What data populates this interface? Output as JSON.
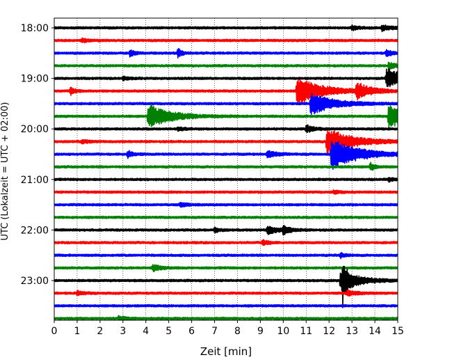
{
  "chart_data": {
    "type": "line",
    "subtype": "helicorder",
    "xlabel": "Zeit  [min]",
    "ylabel": "UTC (Lokalzeit = UTC + 02:00)",
    "xlim": [
      0,
      15
    ],
    "x_ticks": [
      "0",
      "1",
      "2",
      "3",
      "4",
      "5",
      "6",
      "7",
      "8",
      "9",
      "10",
      "11",
      "12",
      "13",
      "14",
      "15"
    ],
    "y_ticks": [
      "18:00",
      "19:00",
      "20:00",
      "21:00",
      "22:00",
      "23:00"
    ],
    "grid": "vertical dotted",
    "trace_colors": [
      "#000000",
      "#ff0000",
      "#0000ff",
      "#008000"
    ],
    "rows": [
      {
        "start": "18:00",
        "color": "#000000",
        "events": [
          {
            "t": 13.0,
            "amp": 0.35,
            "dur": 0.3
          },
          {
            "t": 14.3,
            "amp": 0.45,
            "dur": 0.4
          }
        ]
      },
      {
        "start": "18:15",
        "color": "#ff0000",
        "events": [
          {
            "t": 1.2,
            "amp": 0.3,
            "dur": 0.3
          }
        ]
      },
      {
        "start": "18:30",
        "color": "#0000ff",
        "events": [
          {
            "t": 3.3,
            "amp": 0.5,
            "dur": 0.2
          },
          {
            "t": 5.4,
            "amp": 0.8,
            "dur": 0.15
          },
          {
            "t": 14.5,
            "amp": 0.6,
            "dur": 0.2
          }
        ]
      },
      {
        "start": "18:45",
        "color": "#008000",
        "events": [
          {
            "t": 14.6,
            "amp": 0.5,
            "dur": 0.3
          }
        ]
      },
      {
        "start": "19:00",
        "color": "#000000",
        "events": [
          {
            "t": 14.5,
            "amp": 1.6,
            "dur": 0.8
          },
          {
            "t": 3.0,
            "amp": 0.25,
            "dur": 0.3
          }
        ]
      },
      {
        "start": "19:15",
        "color": "#ff0000",
        "events": [
          {
            "t": 0.7,
            "amp": 0.6,
            "dur": 0.2
          },
          {
            "t": 10.6,
            "amp": 2.2,
            "dur": 1.0
          },
          {
            "t": 13.2,
            "amp": 1.2,
            "dur": 0.6
          }
        ]
      },
      {
        "start": "19:30",
        "color": "#0000ff",
        "events": [
          {
            "t": 11.2,
            "amp": 1.8,
            "dur": 0.9
          }
        ]
      },
      {
        "start": "19:45",
        "color": "#008000",
        "events": [
          {
            "t": 4.1,
            "amp": 1.9,
            "dur": 0.9
          },
          {
            "t": 14.6,
            "amp": 2.0,
            "dur": 0.7
          }
        ]
      },
      {
        "start": "20:00",
        "color": "#000000",
        "events": [
          {
            "t": 11.0,
            "amp": 0.6,
            "dur": 0.3
          },
          {
            "t": 5.4,
            "amp": 0.3,
            "dur": 0.2
          }
        ]
      },
      {
        "start": "20:15",
        "color": "#ff0000",
        "events": [
          {
            "t": 11.9,
            "amp": 2.2,
            "dur": 1.0
          },
          {
            "t": 1.2,
            "amp": 0.25,
            "dur": 0.3
          }
        ]
      },
      {
        "start": "20:30",
        "color": "#0000ff",
        "events": [
          {
            "t": 12.1,
            "amp": 2.4,
            "dur": 1.1
          },
          {
            "t": 3.2,
            "amp": 0.6,
            "dur": 0.2
          },
          {
            "t": 9.3,
            "amp": 0.5,
            "dur": 0.4
          }
        ]
      },
      {
        "start": "20:45",
        "color": "#008000",
        "events": [
          {
            "t": 13.8,
            "amp": 0.6,
            "dur": 0.2
          }
        ]
      },
      {
        "start": "21:00",
        "color": "#000000",
        "events": [
          {
            "t": 14.6,
            "amp": 0.3,
            "dur": 0.2
          }
        ]
      },
      {
        "start": "21:15",
        "color": "#ff0000",
        "events": [
          {
            "t": 12.2,
            "amp": 0.3,
            "dur": 0.2
          }
        ]
      },
      {
        "start": "21:30",
        "color": "#0000ff",
        "events": [
          {
            "t": 5.5,
            "amp": 0.3,
            "dur": 0.3
          }
        ]
      },
      {
        "start": "21:45",
        "color": "#008000",
        "events": []
      },
      {
        "start": "22:00",
        "color": "#000000",
        "events": [
          {
            "t": 7.0,
            "amp": 0.4,
            "dur": 0.2
          },
          {
            "t": 9.3,
            "amp": 0.7,
            "dur": 0.4
          },
          {
            "t": 10.0,
            "amp": 0.6,
            "dur": 0.3
          }
        ]
      },
      {
        "start": "22:15",
        "color": "#ff0000",
        "events": [
          {
            "t": 9.1,
            "amp": 0.5,
            "dur": 0.2
          }
        ]
      },
      {
        "start": "22:30",
        "color": "#0000ff",
        "events": [
          {
            "t": 12.5,
            "amp": 0.4,
            "dur": 0.2
          }
        ]
      },
      {
        "start": "22:45",
        "color": "#008000",
        "events": [
          {
            "t": 4.3,
            "amp": 0.5,
            "dur": 0.3
          }
        ]
      },
      {
        "start": "23:00",
        "color": "#000000",
        "events": [
          {
            "t": 12.5,
            "amp": 1.5,
            "dur": 0.8
          },
          {
            "t": 12.6,
            "amp": 3.0,
            "dur": 0.15
          }
        ]
      },
      {
        "start": "23:15",
        "color": "#ff0000",
        "events": [
          {
            "t": 1.0,
            "amp": 0.3,
            "dur": 0.3
          },
          {
            "t": 12.8,
            "amp": 0.4,
            "dur": 0.4
          }
        ]
      },
      {
        "start": "23:30",
        "color": "#0000ff",
        "events": []
      },
      {
        "start": "23:45",
        "color": "#008000",
        "events": [
          {
            "t": 2.8,
            "amp": 0.3,
            "dur": 0.3
          }
        ]
      }
    ]
  }
}
